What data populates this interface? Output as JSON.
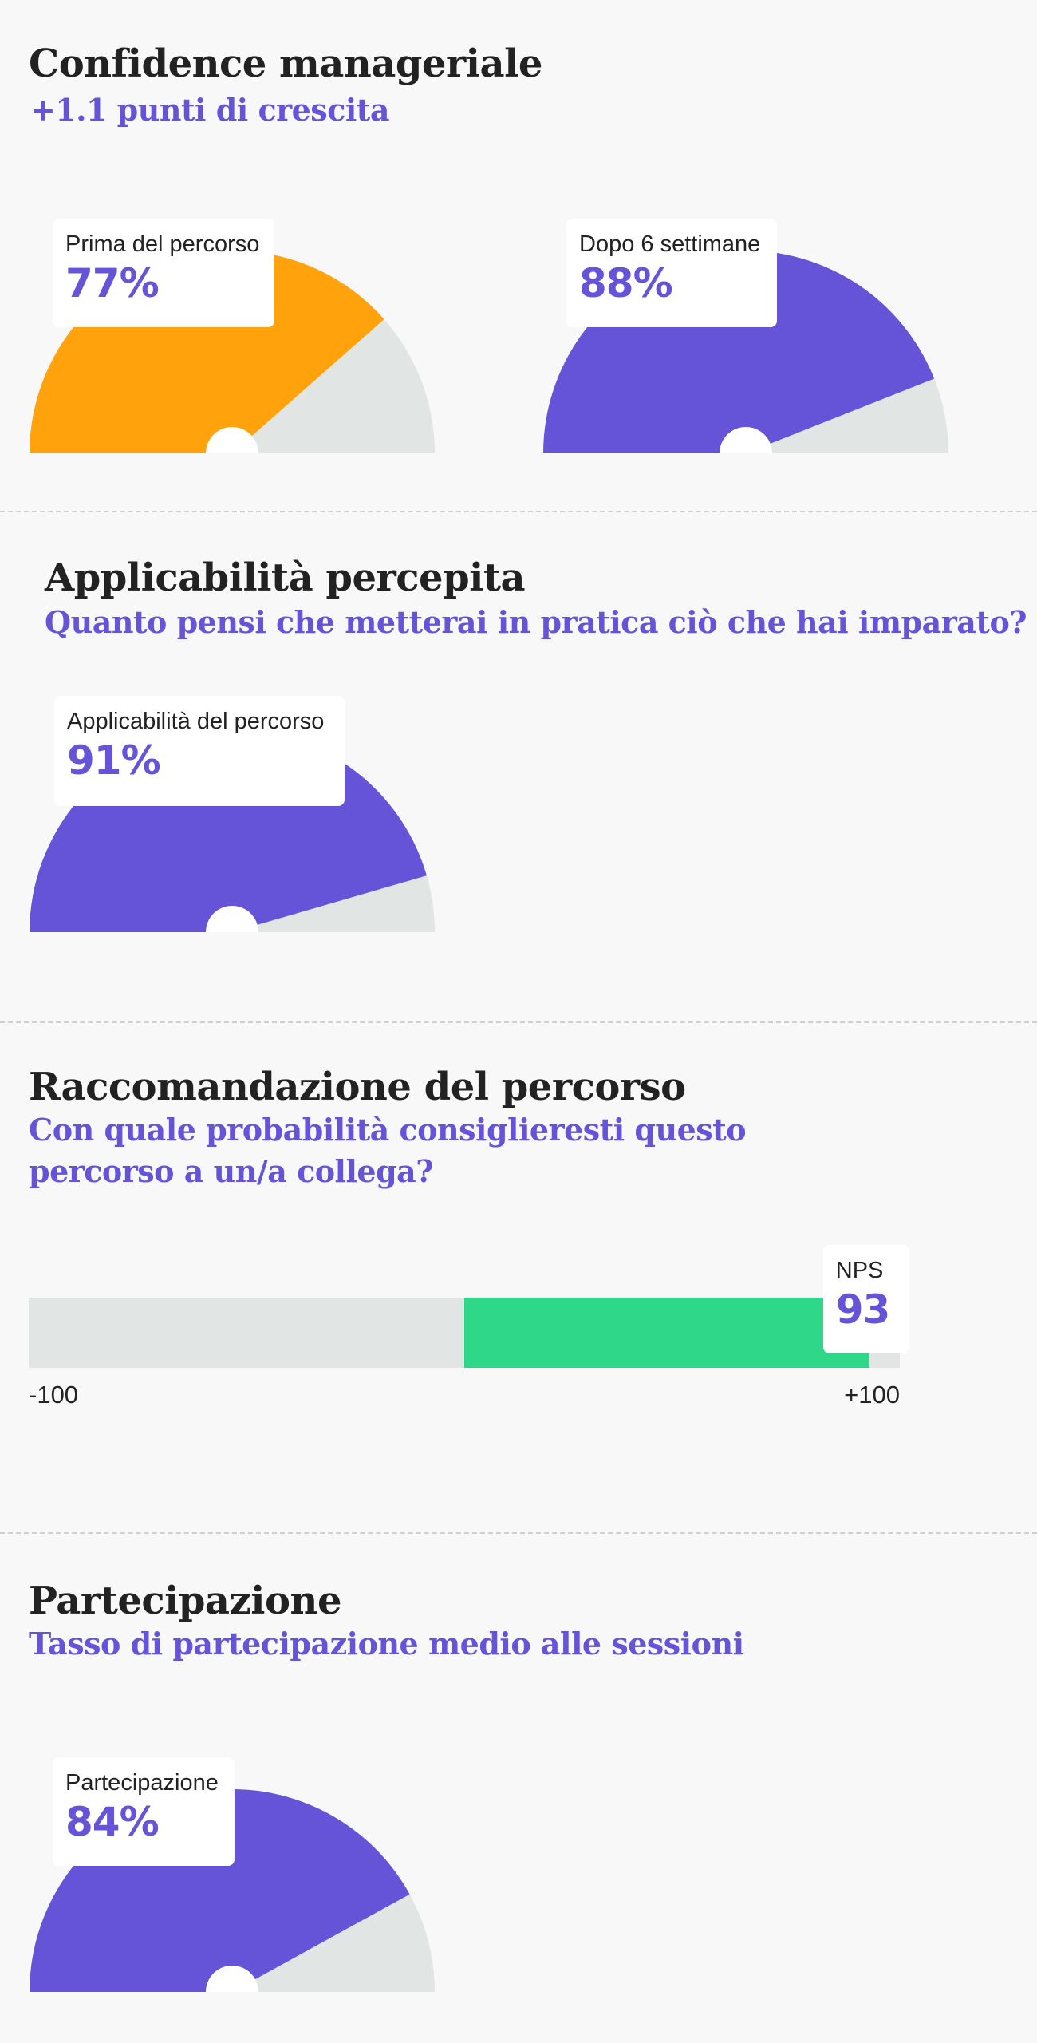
{
  "sections": [
    {
      "title": "Confidence manageriale",
      "subtitle": "+1.1 punti di crescita"
    },
    {
      "title": "Applicabilità percepita",
      "subtitle": "Quanto pensi che metterai in pratica ciò che hai imparato?"
    },
    {
      "title": "Raccomandazione del percorso",
      "subtitle": "Con quale probabilità consiglieresti questo percorso a un/a collega?"
    },
    {
      "title": "Partecipazione",
      "subtitle": "Tasso di partecipazione medio alle sessioni"
    }
  ],
  "chart_data": [
    {
      "type": "gauge",
      "label": "Prima del percorso",
      "value": 77,
      "display": "77%",
      "range": [
        0,
        100
      ],
      "color": "#ffa20c",
      "track_color": "#e1e5e4"
    },
    {
      "type": "gauge",
      "label": "Dopo 6 settimane",
      "value": 88,
      "display": "88%",
      "range": [
        0,
        100
      ],
      "color": "#6554d8",
      "track_color": "#e1e5e4"
    },
    {
      "type": "gauge",
      "label": "Applicabilità del percorso",
      "value": 91,
      "display": "91%",
      "range": [
        0,
        100
      ],
      "color": "#6554d8",
      "track_color": "#e1e5e4"
    },
    {
      "type": "bar",
      "label": "NPS",
      "value": 93,
      "display": "93",
      "range": [
        -100,
        100
      ],
      "min_label": "-100",
      "max_label": "+100",
      "color": "#2ed888",
      "track_color": "#e1e5e4"
    },
    {
      "type": "gauge",
      "label": "Partecipazione",
      "value": 84,
      "display": "84%",
      "range": [
        0,
        100
      ],
      "color": "#6554d8",
      "track_color": "#e1e5e4"
    }
  ]
}
